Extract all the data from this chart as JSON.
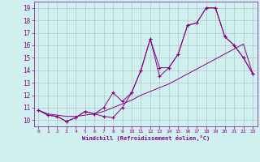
{
  "xlabel": "Windchill (Refroidissement éolien,°C)",
  "bg_color": "#cff0ee",
  "grid_color": "#b0c8c8",
  "line_color": "#880088",
  "xlim": [
    -0.5,
    23.5
  ],
  "ylim": [
    9.5,
    19.5
  ],
  "xticks": [
    0,
    1,
    2,
    3,
    4,
    5,
    6,
    7,
    8,
    9,
    10,
    11,
    12,
    13,
    14,
    15,
    16,
    17,
    18,
    19,
    20,
    21,
    22,
    23
  ],
  "yticks": [
    10,
    11,
    12,
    13,
    14,
    15,
    16,
    17,
    18,
    19
  ],
  "line1_x": [
    0,
    1,
    2,
    3,
    4,
    5,
    6,
    7,
    8,
    9,
    10,
    11,
    12,
    13,
    14,
    15,
    16,
    17,
    18,
    19,
    20,
    21,
    22,
    23
  ],
  "line1_y": [
    10.8,
    10.4,
    10.3,
    9.9,
    10.2,
    10.7,
    10.5,
    10.3,
    10.2,
    11.0,
    12.2,
    14.0,
    16.5,
    13.5,
    14.2,
    15.3,
    17.6,
    17.8,
    19.0,
    19.0,
    16.7,
    16.0,
    15.0,
    13.7
  ],
  "line2_x": [
    0,
    1,
    2,
    3,
    4,
    5,
    6,
    7,
    8,
    9,
    10,
    11,
    12,
    13,
    14,
    15,
    16,
    17,
    18,
    19,
    20,
    21,
    22,
    23
  ],
  "line2_y": [
    10.8,
    10.5,
    10.4,
    10.3,
    10.3,
    10.4,
    10.5,
    10.7,
    11.0,
    11.3,
    11.6,
    12.0,
    12.3,
    12.6,
    12.9,
    13.3,
    13.7,
    14.1,
    14.5,
    14.9,
    15.3,
    15.7,
    16.1,
    13.7
  ],
  "line3_x": [
    0,
    1,
    2,
    3,
    4,
    5,
    6,
    7,
    8,
    9,
    10,
    11,
    12,
    13,
    14,
    15,
    16,
    17,
    18,
    19,
    20,
    21,
    22,
    23
  ],
  "line3_y": [
    10.8,
    10.4,
    10.3,
    9.9,
    10.2,
    10.7,
    10.5,
    11.0,
    12.2,
    11.5,
    12.2,
    14.0,
    16.5,
    14.2,
    14.2,
    15.3,
    17.6,
    17.8,
    19.0,
    19.0,
    16.7,
    16.0,
    15.0,
    13.7
  ]
}
